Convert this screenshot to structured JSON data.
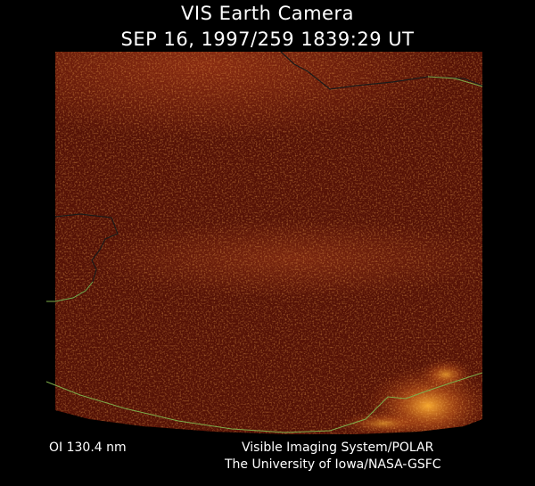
{
  "header": {
    "title": "VIS Earth Camera",
    "timestamp": "SEP 16, 1997/259 1839:29 UT"
  },
  "footer": {
    "filter": "OI  130.4 nm",
    "instrument": "Visible Imaging System/POLAR",
    "institution": "The University of Iowa/NASA-GSFC"
  },
  "colors": {
    "background": "#000000",
    "image_base": "#4a0e05",
    "aurora_bright": "#ff9a20",
    "coastline": "#7fae4a",
    "coastline_dark": "#1a1a1a",
    "text": "#ffffff"
  }
}
